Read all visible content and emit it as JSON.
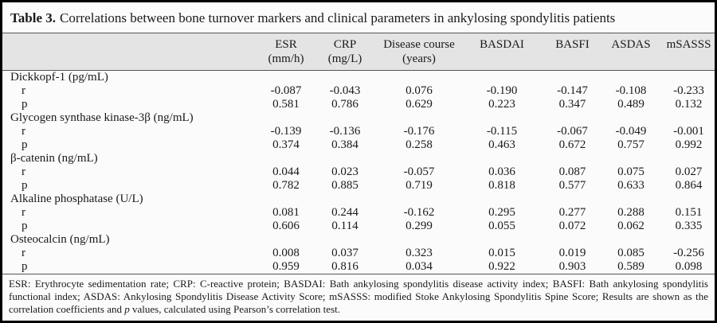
{
  "title": {
    "label": "Table 3.",
    "caption": "Correlations between bone turnover markers and clinical parameters in ankylosing spondylitis patients"
  },
  "table": {
    "columns": [
      {
        "line1": "ESR",
        "line2": "(mm/h)"
      },
      {
        "line1": "CRP",
        "line2": "(mg/L)"
      },
      {
        "line1": "Disease course",
        "line2": "(years)"
      },
      {
        "line1": "BASDAI",
        "line2": ""
      },
      {
        "line1": "BASFI",
        "line2": ""
      },
      {
        "line1": "ASDAS",
        "line2": ""
      },
      {
        "line1": "mSASSS",
        "line2": ""
      }
    ],
    "row_labels": {
      "r": "r",
      "p": "p"
    },
    "groups": [
      {
        "name": "Dickkopf-1 (pg/mL)",
        "r": [
          "-0.087",
          "-0.043",
          "0.076",
          "-0.190",
          "-0.147",
          "-0.108",
          "-0.233"
        ],
        "p": [
          "0.581",
          "0.786",
          "0.629",
          "0.223",
          "0.347",
          "0.489",
          "0.132"
        ]
      },
      {
        "name": "Glycogen synthase kinase-3β (ng/mL)",
        "r": [
          "-0.139",
          "-0.136",
          "-0.176",
          "-0.115",
          "-0.067",
          "-0.049",
          "-0.001"
        ],
        "p": [
          "0.374",
          "0.384",
          "0.258",
          "0.463",
          "0.672",
          "0.757",
          "0.992"
        ]
      },
      {
        "name": "β-catenin (ng/mL)",
        "r": [
          "0.044",
          "0.023",
          "-0.057",
          "0.036",
          "0.087",
          "0.075",
          "0.027"
        ],
        "p": [
          "0.782",
          "0.885",
          "0.719",
          "0.818",
          "0.577",
          "0.633",
          "0.864"
        ]
      },
      {
        "name": "Alkaline phosphatase (U/L)",
        "r": [
          "0.081",
          "0.244",
          "-0.162",
          "0.295",
          "0.277",
          "0.288",
          "0.151"
        ],
        "p": [
          "0.606",
          "0.114",
          "0.299",
          "0.055",
          "0.072",
          "0.062",
          "0.335"
        ]
      },
      {
        "name": "Osteocalcin (ng/mL)",
        "r": [
          "0.008",
          "0.037",
          "0.323",
          "0.015",
          "0.019",
          "0.085",
          "-0.256"
        ],
        "p": [
          "0.959",
          "0.816",
          "0.034",
          "0.922",
          "0.903",
          "0.589",
          "0.098"
        ]
      }
    ]
  },
  "footnote": {
    "part1": "ESR: Erythrocyte sedimentation rate; CRP: C-reactive protein; BASDAI: Bath ankylosing spondylitis disease activity index; BASFI: Bath ankylosing spondylitis functional index; ASDAS: Ankylosing Spondylitis Disease Activity Score; mSASSS: modified Stoke Ankylosing Spondylitis Spine Score; Results are shown as the correlation coefficients and ",
    "p_italic": "p",
    "part2": " values, calculated using Pearson’s correlation test."
  },
  "colors": {
    "header_band": "#e4e4e4",
    "outer_border": "#000000",
    "rule": "#555555",
    "background": "#fbfbfb",
    "text": "#1a1a1a"
  }
}
